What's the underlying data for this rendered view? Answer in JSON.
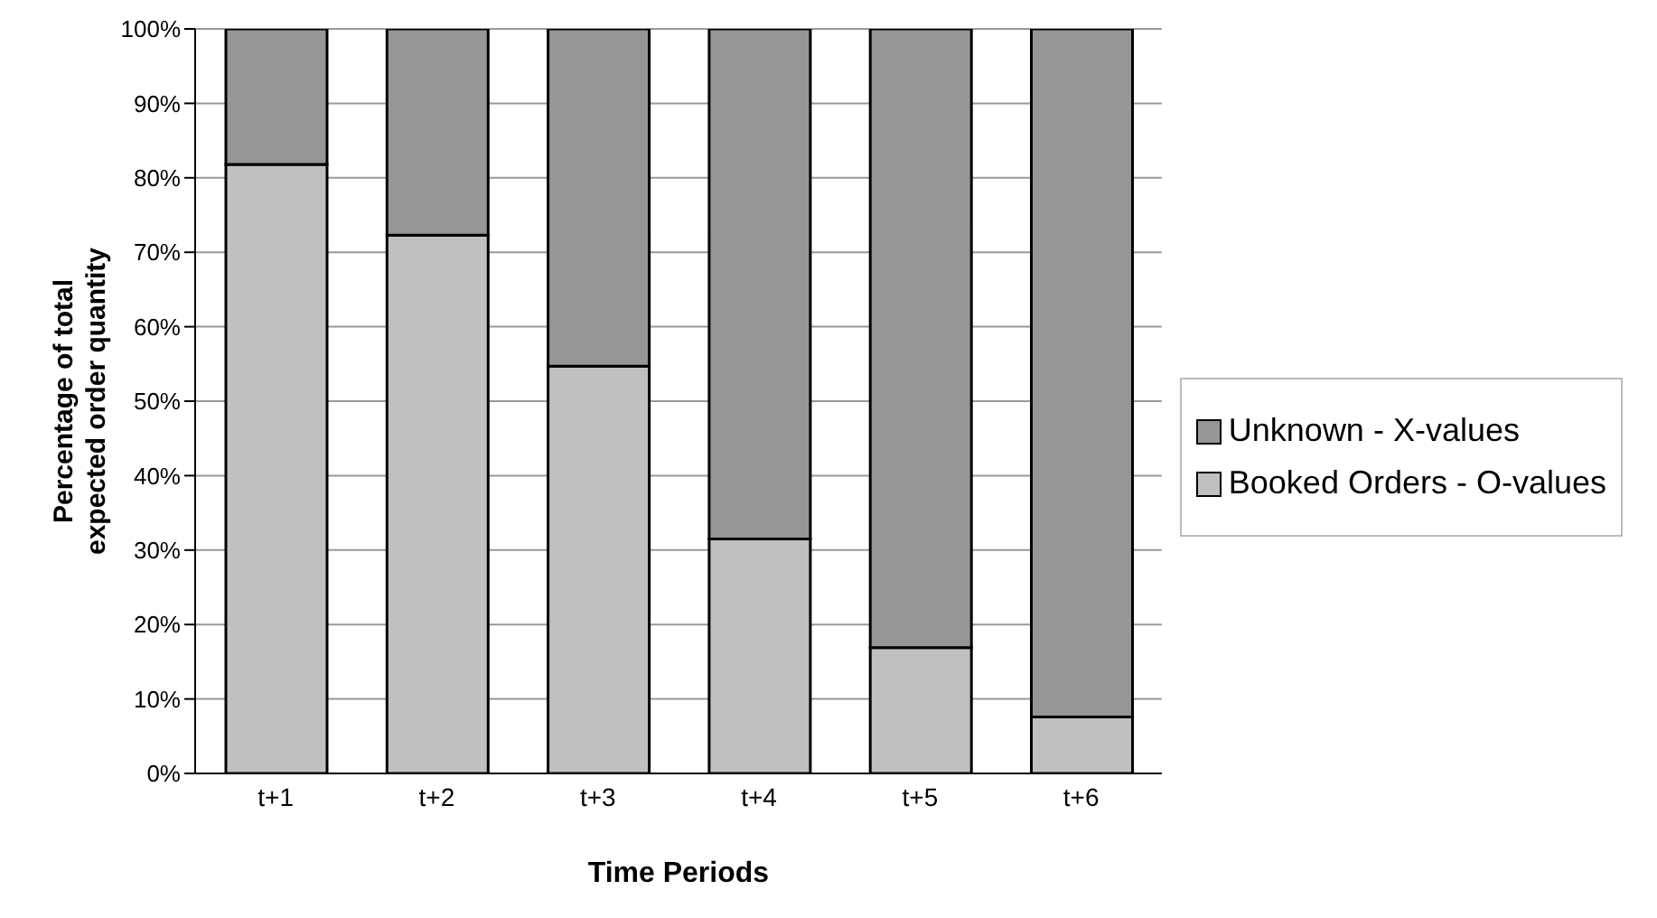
{
  "chart_data": {
    "type": "bar",
    "stacked": true,
    "xlabel": "Time Periods",
    "ylabel": "Percentage of total expected order quantity",
    "categories": [
      "t+1",
      "t+2",
      "t+3",
      "t+4",
      "t+5",
      "t+6"
    ],
    "series": [
      {
        "name": "Booked Orders - O-values",
        "color": "#c0c0c0",
        "values": [
          81.8,
          72.3,
          54.7,
          31.5,
          16.9,
          7.6
        ]
      },
      {
        "name": "Unknown - X-values",
        "color": "#969696",
        "values": [
          18.2,
          27.7,
          45.3,
          68.5,
          83.1,
          92.4
        ]
      }
    ],
    "ylim": [
      0,
      100
    ],
    "yticks": [
      {
        "value": 0,
        "label": "0%"
      },
      {
        "value": 10,
        "label": "10%"
      },
      {
        "value": 20,
        "label": "20%"
      },
      {
        "value": 30,
        "label": "30%"
      },
      {
        "value": 40,
        "label": "40%"
      },
      {
        "value": 50,
        "label": "50%"
      },
      {
        "value": 60,
        "label": "60%"
      },
      {
        "value": 70,
        "label": "70%"
      },
      {
        "value": 80,
        "label": "80%"
      },
      {
        "value": 90,
        "label": "90%"
      },
      {
        "value": 100,
        "label": "100%"
      }
    ],
    "grid": "y",
    "legend": "right"
  }
}
